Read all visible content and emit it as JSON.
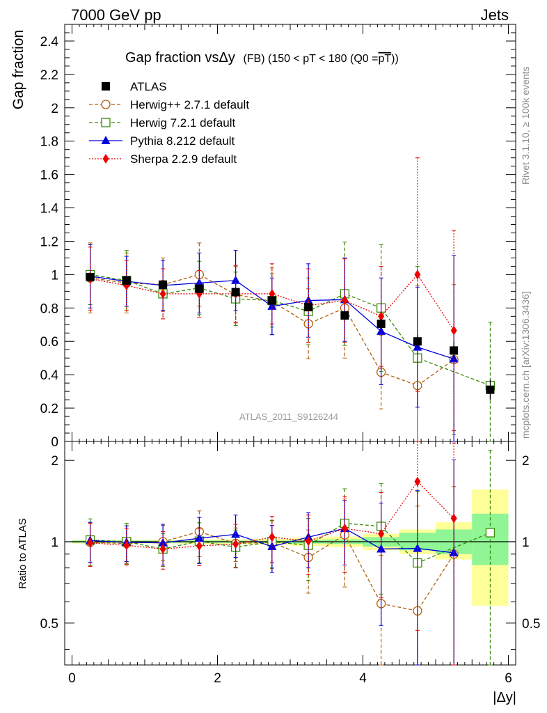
{
  "header": {
    "left": "7000 GeV pp",
    "right": "Jets"
  },
  "side_labels": {
    "rivet": "Rivet 3.1.10, ≥ 100k events",
    "mcplots": "mcplots.cern.ch [arXiv:1306.3436]"
  },
  "chart_data": {
    "type": "line",
    "title": "Gap fraction vsΔy (FB) (150 < pT < 180 (Q0 =pT))",
    "title_parts": {
      "main": "Gap fraction vsΔy",
      "small": "(FB) (150 < pT < 180 (Q0 =",
      "over": "pT",
      "close": "))"
    },
    "watermark": "ATLAS_2011_S9126244",
    "xlabel": "|Δy|",
    "ylabel": "Gap fraction",
    "ratio_ylabel": "Ratio to ATLAS",
    "xlim": [
      -0.1,
      6.1
    ],
    "ylim": [
      0,
      2.5
    ],
    "ratio_ylim": [
      0.35,
      2.35
    ],
    "x_ticks": [
      "0",
      "2",
      "4",
      "6"
    ],
    "y_ticks": [
      "0",
      "0.2",
      "0.4",
      "0.6",
      "0.8",
      "1",
      "1.2",
      "1.4",
      "1.6",
      "1.8",
      "2",
      "2.2",
      "2.4"
    ],
    "ratio_y_ticks": [
      "0.5",
      "1",
      "2"
    ],
    "band": {
      "x": [
        0.25,
        0.75,
        1.25,
        1.75,
        2.25,
        2.75,
        3.25,
        3.75,
        4.25,
        4.75,
        5.25,
        5.75
      ],
      "stat_lo": [
        0.99,
        0.99,
        0.99,
        0.99,
        0.99,
        0.99,
        0.985,
        0.98,
        0.96,
        0.93,
        0.9,
        0.82
      ],
      "stat_hi": [
        1.01,
        1.01,
        1.01,
        1.01,
        1.01,
        1.01,
        1.015,
        1.02,
        1.04,
        1.08,
        1.11,
        1.27
      ],
      "tot_lo": [
        0.985,
        0.985,
        0.985,
        0.98,
        0.98,
        0.975,
        0.965,
        0.955,
        0.93,
        0.9,
        0.86,
        0.58
      ],
      "tot_hi": [
        1.015,
        1.015,
        1.015,
        1.02,
        1.02,
        1.025,
        1.035,
        1.045,
        1.07,
        1.11,
        1.18,
        1.56
      ]
    },
    "series": [
      {
        "name": "ATLAS",
        "color": "#000000",
        "marker": "square",
        "line": "none",
        "x": [
          0.25,
          0.75,
          1.25,
          1.75,
          2.25,
          2.75,
          3.25,
          3.75,
          4.25,
          4.75,
          5.25,
          5.75
        ],
        "y": [
          0.985,
          0.965,
          0.94,
          0.915,
          0.895,
          0.845,
          0.805,
          0.755,
          0.705,
          0.6,
          0.545,
          0.31
        ],
        "err": [
          0.01,
          0.01,
          0.01,
          0.012,
          0.014,
          0.015,
          0.02,
          0.025,
          0.03,
          0.04,
          0.05,
          0.06
        ],
        "ratio": [],
        "ratio_err": []
      },
      {
        "name": "Herwig++ 2.7.1 default",
        "color": "#b25f0a",
        "marker": "circle-open",
        "line": "dashed",
        "x": [
          0.25,
          0.75,
          1.25,
          1.75,
          2.25,
          2.75,
          3.25,
          3.75,
          4.25,
          4.75,
          5.25
        ],
        "y": [
          0.98,
          0.95,
          0.94,
          1.0,
          0.88,
          0.84,
          0.705,
          0.8,
          0.415,
          0.335,
          0.49
        ],
        "err": [
          0.21,
          0.18,
          0.16,
          0.19,
          0.17,
          0.2,
          0.21,
          0.3,
          0.22,
          0.6,
          0.45
        ],
        "ratio": [
          0.995,
          0.985,
          1.0,
          1.09,
          0.985,
          0.995,
          0.875,
          1.06,
          0.59,
          0.555,
          0.9
        ],
        "ratio_err": [
          0.18,
          0.16,
          0.15,
          0.21,
          0.14,
          0.2,
          0.23,
          0.38,
          0.3,
          0.8,
          0.7
        ]
      },
      {
        "name": "Herwig 7.2.1 default",
        "color": "#3a8a0a",
        "marker": "square-open",
        "line": "dashed",
        "x": [
          0.25,
          0.75,
          1.25,
          1.75,
          2.25,
          2.75,
          3.25,
          3.75,
          4.25,
          4.75,
          5.75
        ],
        "y": [
          1.0,
          0.965,
          0.885,
          0.92,
          0.855,
          0.845,
          0.78,
          0.885,
          0.8,
          0.5,
          0.335
        ],
        "err": [
          0.18,
          0.18,
          0.15,
          0.16,
          0.16,
          0.16,
          0.2,
          0.31,
          0.38,
          0.55,
          0.38
        ],
        "ratio": [
          1.015,
          1.0,
          0.94,
          1.005,
          0.955,
          1.0,
          0.97,
          1.17,
          1.14,
          0.835,
          1.08
        ],
        "ratio_err": [
          0.2,
          0.17,
          0.13,
          0.17,
          0.15,
          0.2,
          0.25,
          0.4,
          0.5,
          0.7,
          1.1
        ]
      },
      {
        "name": "Pythia 8.212 default",
        "color": "#0000dd",
        "marker": "triangle",
        "line": "solid",
        "x": [
          0.25,
          0.75,
          1.25,
          1.75,
          2.25,
          2.75,
          3.25,
          3.75,
          4.25,
          4.75,
          5.25
        ],
        "y": [
          0.99,
          0.96,
          0.935,
          0.95,
          0.965,
          0.81,
          0.845,
          0.85,
          0.66,
          0.565,
          0.495
        ],
        "err": [
          0.19,
          0.15,
          0.15,
          0.18,
          0.18,
          0.17,
          0.22,
          0.25,
          0.32,
          0.36,
          0.62
        ],
        "ratio": [
          1.01,
          0.995,
          0.99,
          1.03,
          1.065,
          0.96,
          1.04,
          1.12,
          0.94,
          0.945,
          0.91
        ],
        "ratio_err": [
          0.17,
          0.15,
          0.17,
          0.2,
          0.19,
          0.19,
          0.24,
          0.3,
          0.45,
          0.6,
          1.1
        ]
      },
      {
        "name": "Sherpa 2.2.9 default",
        "color": "#ee0000",
        "marker": "diamond",
        "line": "dotted",
        "x": [
          0.25,
          0.75,
          1.25,
          1.75,
          2.25,
          2.75,
          3.25,
          3.75,
          4.25,
          4.75,
          5.25
        ],
        "y": [
          0.975,
          0.935,
          0.885,
          0.885,
          0.885,
          0.885,
          0.815,
          0.845,
          0.75,
          1.0,
          0.665
        ],
        "err": [
          0.19,
          0.15,
          0.15,
          0.14,
          0.17,
          0.18,
          0.22,
          0.25,
          0.3,
          0.7,
          0.6
        ],
        "ratio": [
          0.99,
          0.97,
          0.94,
          0.965,
          0.98,
          1.04,
          1.005,
          1.12,
          1.07,
          1.67,
          1.22
        ],
        "ratio_err": [
          0.18,
          0.15,
          0.15,
          0.15,
          0.18,
          0.2,
          0.25,
          0.35,
          0.45,
          1.2,
          1.1
        ]
      }
    ]
  }
}
